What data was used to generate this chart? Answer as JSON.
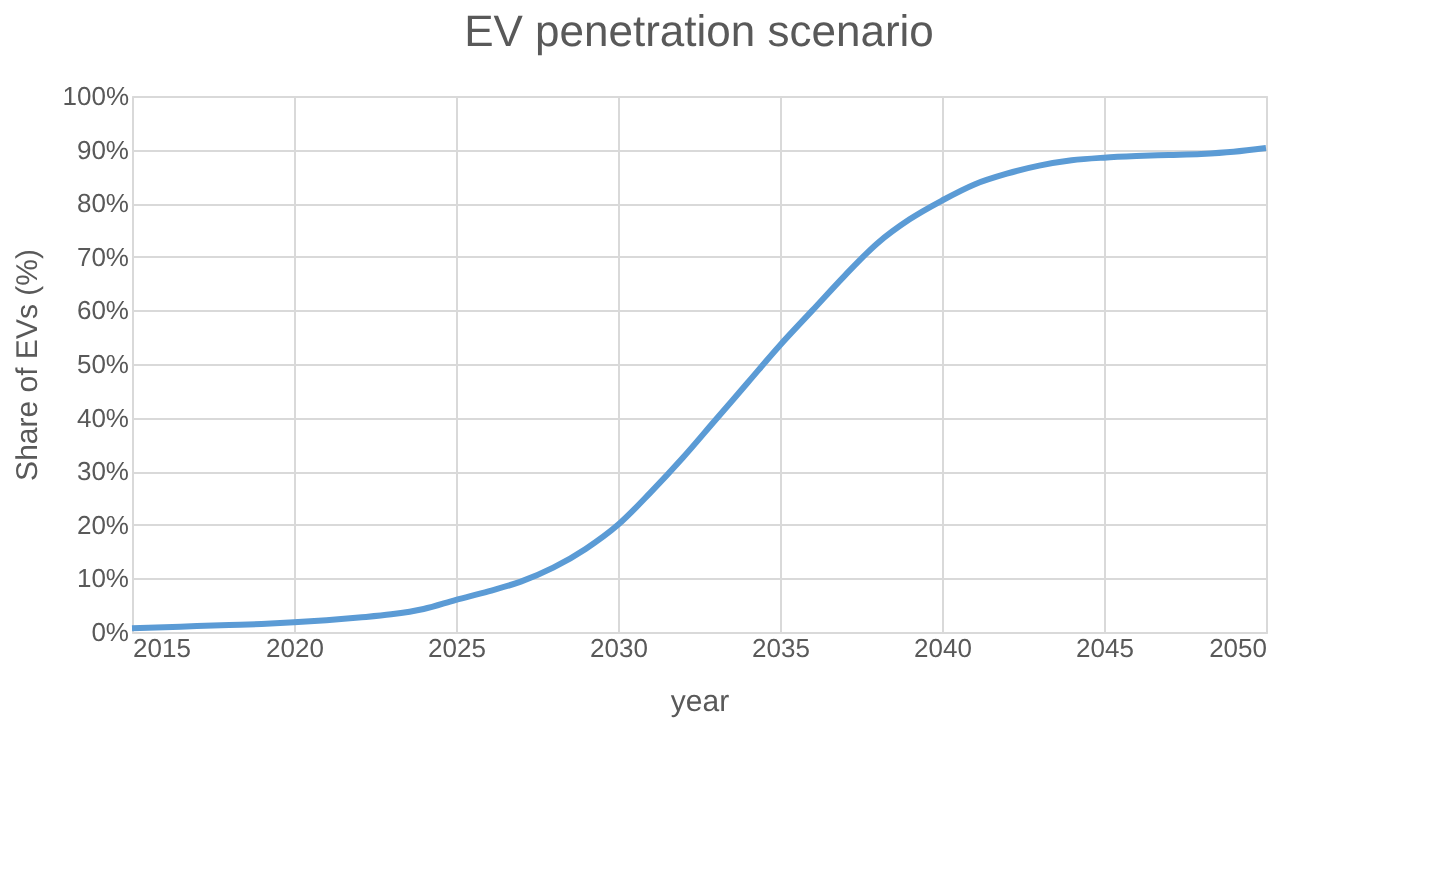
{
  "chart_data": {
    "type": "line",
    "title": "EV penetration scenario",
    "xlabel": "year",
    "ylabel": "Share of EVs (%)",
    "x": [
      2015,
      2016,
      2017,
      2018,
      2019,
      2020,
      2021,
      2022,
      2023,
      2024,
      2025,
      2026,
      2027,
      2028,
      2029,
      2030,
      2031,
      2032,
      2033,
      2034,
      2035,
      2036,
      2037,
      2038,
      2039,
      2040,
      2041,
      2042,
      2043,
      2044,
      2045,
      2046,
      2047,
      2048,
      2049,
      2050
    ],
    "series": [
      {
        "color": "#5b9bd5",
        "values": [
          0.7,
          0.9,
          1.1,
          1.3,
          1.5,
          1.8,
          2.2,
          2.7,
          3.3,
          4.3,
          6,
          7.6,
          9.4,
          12,
          15.5,
          20,
          26,
          32.5,
          39.5,
          46.5,
          53.5,
          60,
          66.5,
          72.5,
          77,
          80.5,
          83.5,
          85.5,
          87,
          88,
          88.5,
          88.8,
          89,
          89.2,
          89.6,
          90.3
        ]
      }
    ],
    "xlim": [
      2015,
      2050
    ],
    "xticks": [
      2015,
      2020,
      2025,
      2030,
      2035,
      2040,
      2045,
      2050
    ],
    "ylim": [
      0,
      100
    ],
    "yticks": [
      {
        "value": 0,
        "label": "0%"
      },
      {
        "value": 10,
        "label": "10%"
      },
      {
        "value": 20,
        "label": "20%"
      },
      {
        "value": 30,
        "label": "30%"
      },
      {
        "value": 40,
        "label": "40%"
      },
      {
        "value": 50,
        "label": "50%"
      },
      {
        "value": 60,
        "label": "60%"
      },
      {
        "value": 70,
        "label": "70%"
      },
      {
        "value": 80,
        "label": "80%"
      },
      {
        "value": 90,
        "label": "90%"
      },
      {
        "value": 100,
        "label": "100%"
      }
    ],
    "grid": true,
    "marker": "none",
    "line_style": "solid"
  }
}
